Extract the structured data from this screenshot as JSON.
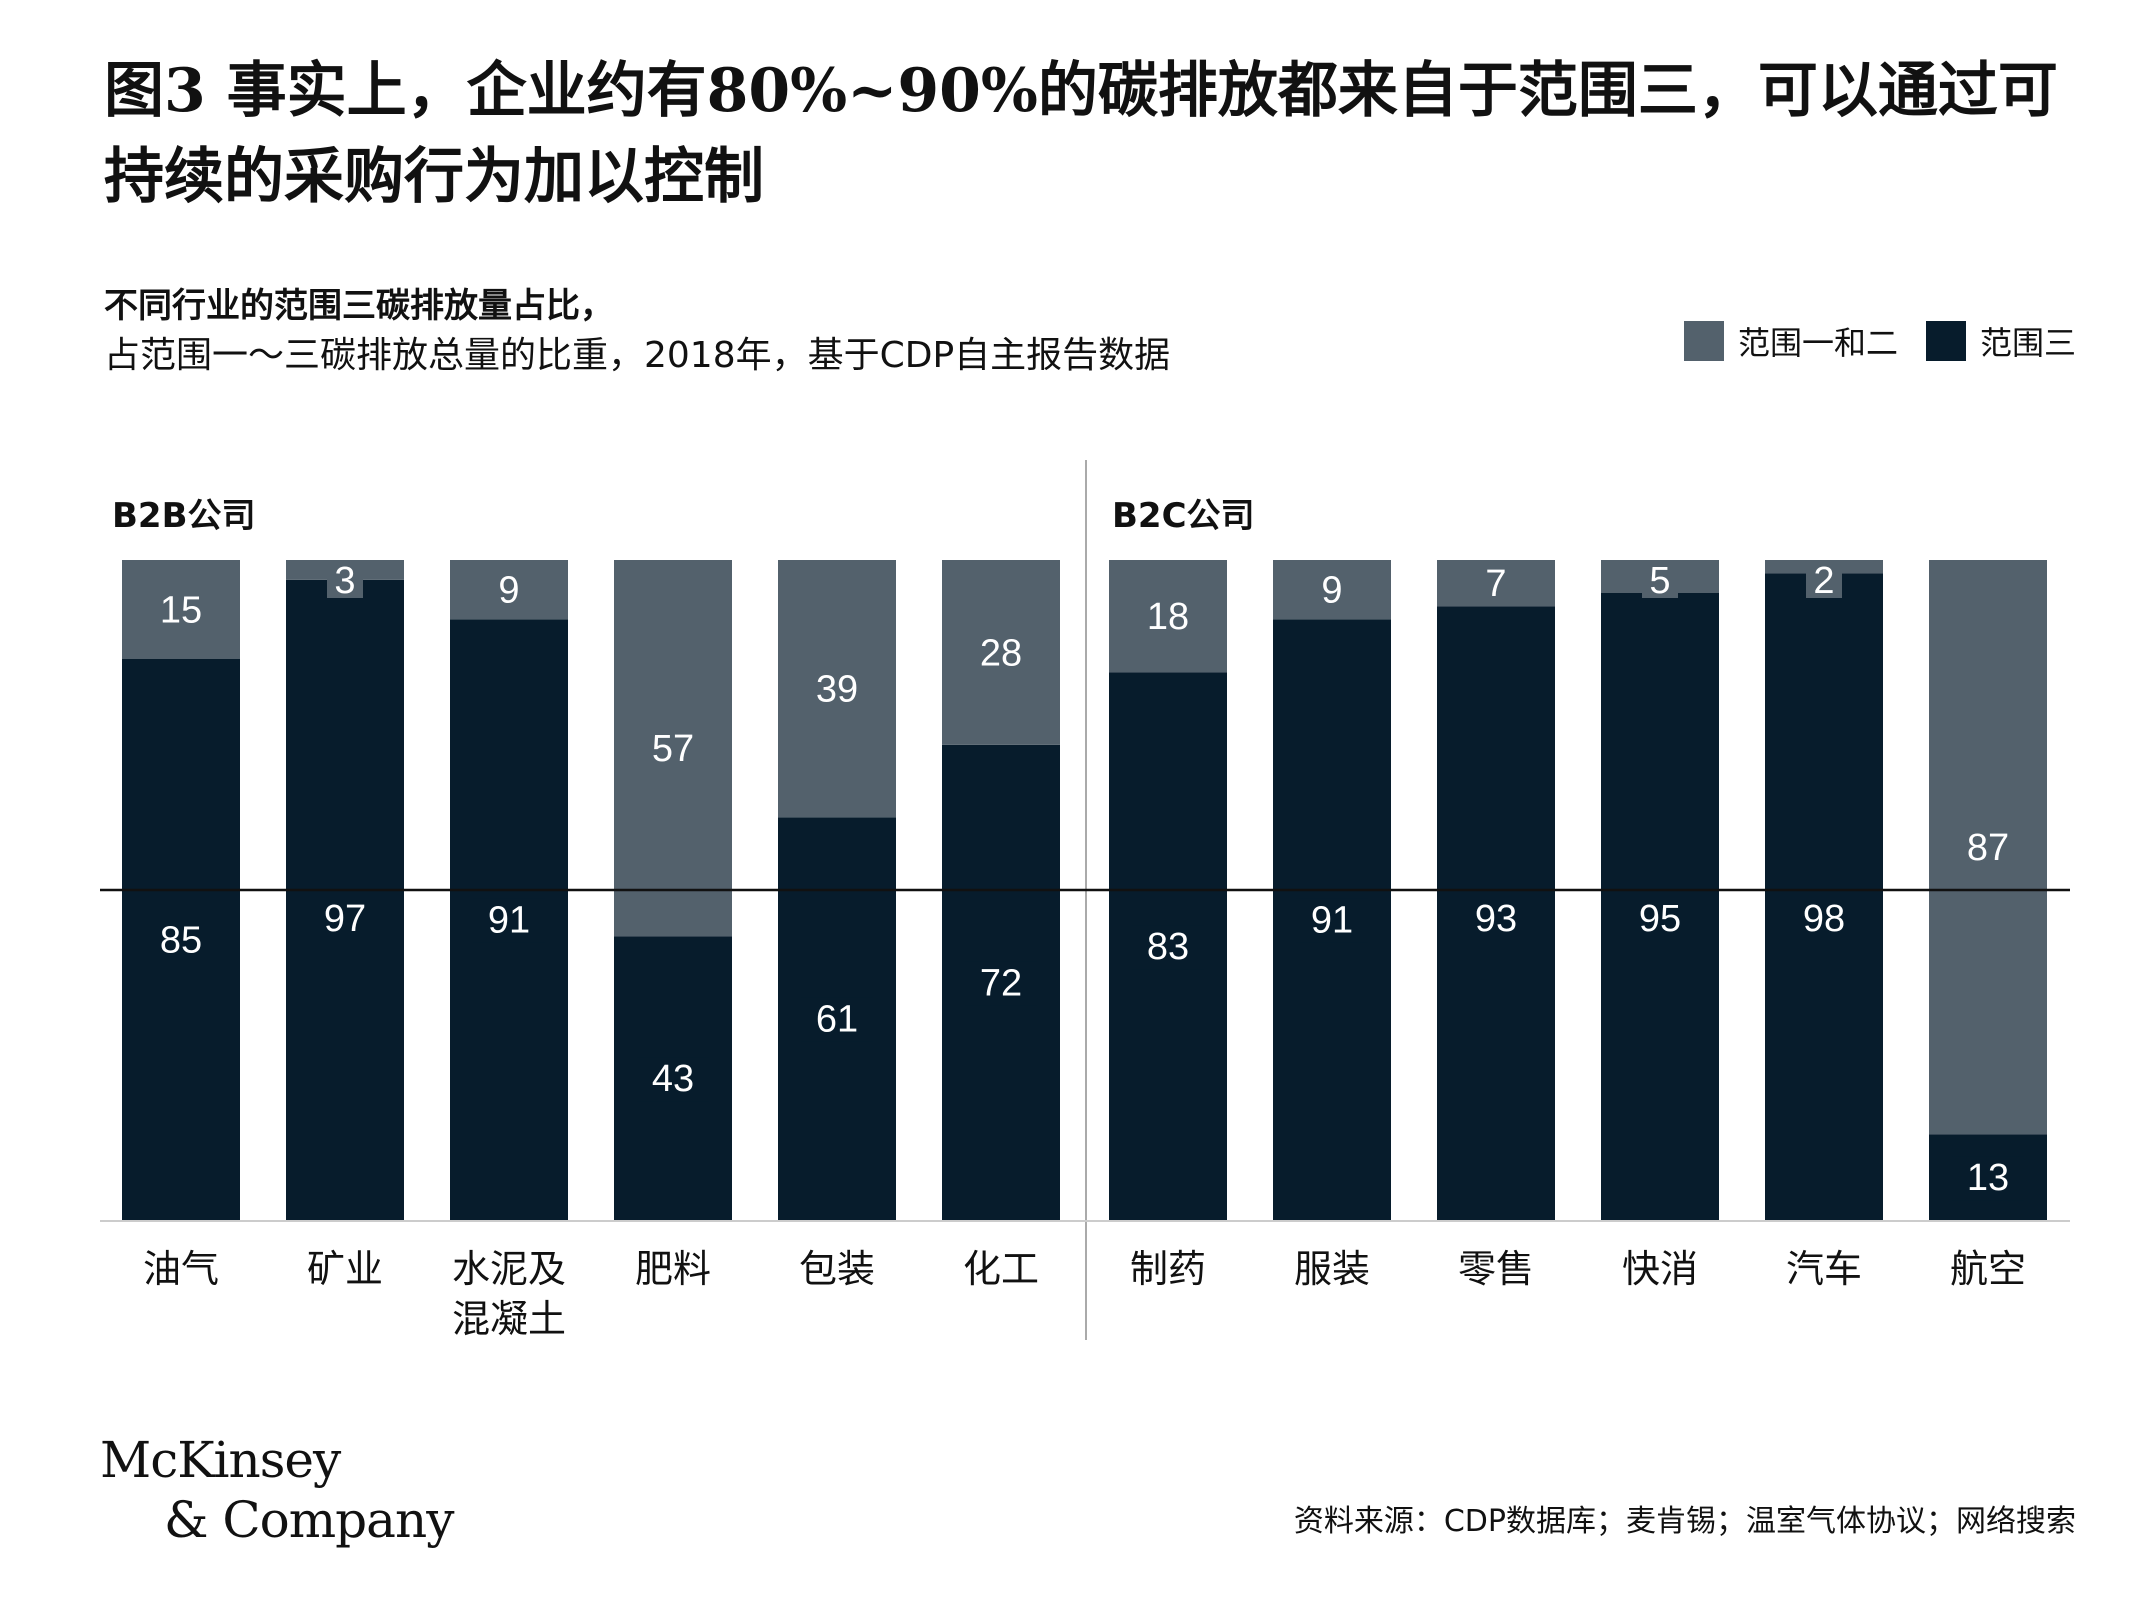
{
  "title": "图3 事实上，企业约有80%~90%的碳排放都来自于范围三，可以通过可持续的采购行为加以控制",
  "subtitle_line1": "不同行业的范围三碳排放量占比，",
  "subtitle_line2": "占范围一～三碳排放总量的比重，2018年，基于CDP自主报告数据",
  "source": "资料来源：CDP数据库；麦肯锡；温室气体协议；网络搜索",
  "logo": {
    "line1": "McKinsey",
    "line2": "& Company"
  },
  "colors": {
    "scope12": "#53616c",
    "scope3": "#071c2c",
    "midline": "#111111",
    "divider": "#aaaaaa"
  },
  "chart_data": {
    "type": "bar",
    "stacked": true,
    "percent": true,
    "ylim": [
      0,
      100
    ],
    "groups": [
      {
        "label": "B2B公司",
        "categories": [
          "油气",
          "矿业",
          "水泥及混凝土",
          "肥料",
          "包装",
          "化工"
        ]
      },
      {
        "label": "B2C公司",
        "categories": [
          "制药",
          "服装",
          "零售",
          "快消",
          "汽车",
          "航空"
        ]
      }
    ],
    "categories": [
      "油气",
      "矿业",
      "水泥及混凝土",
      "肥料",
      "包装",
      "化工",
      "制药",
      "服装",
      "零售",
      "快消",
      "汽车",
      "航空"
    ],
    "series": [
      {
        "name": "范围三",
        "values": [
          85,
          97,
          91,
          43,
          61,
          72,
          83,
          91,
          93,
          95,
          98,
          13
        ]
      },
      {
        "name": "范围一和二",
        "values": [
          15,
          3,
          9,
          57,
          39,
          28,
          18,
          9,
          7,
          5,
          2,
          87
        ]
      }
    ],
    "reference_line": 50,
    "legend": [
      "范围一和二",
      "范围三"
    ],
    "legend_position": "top-right"
  }
}
